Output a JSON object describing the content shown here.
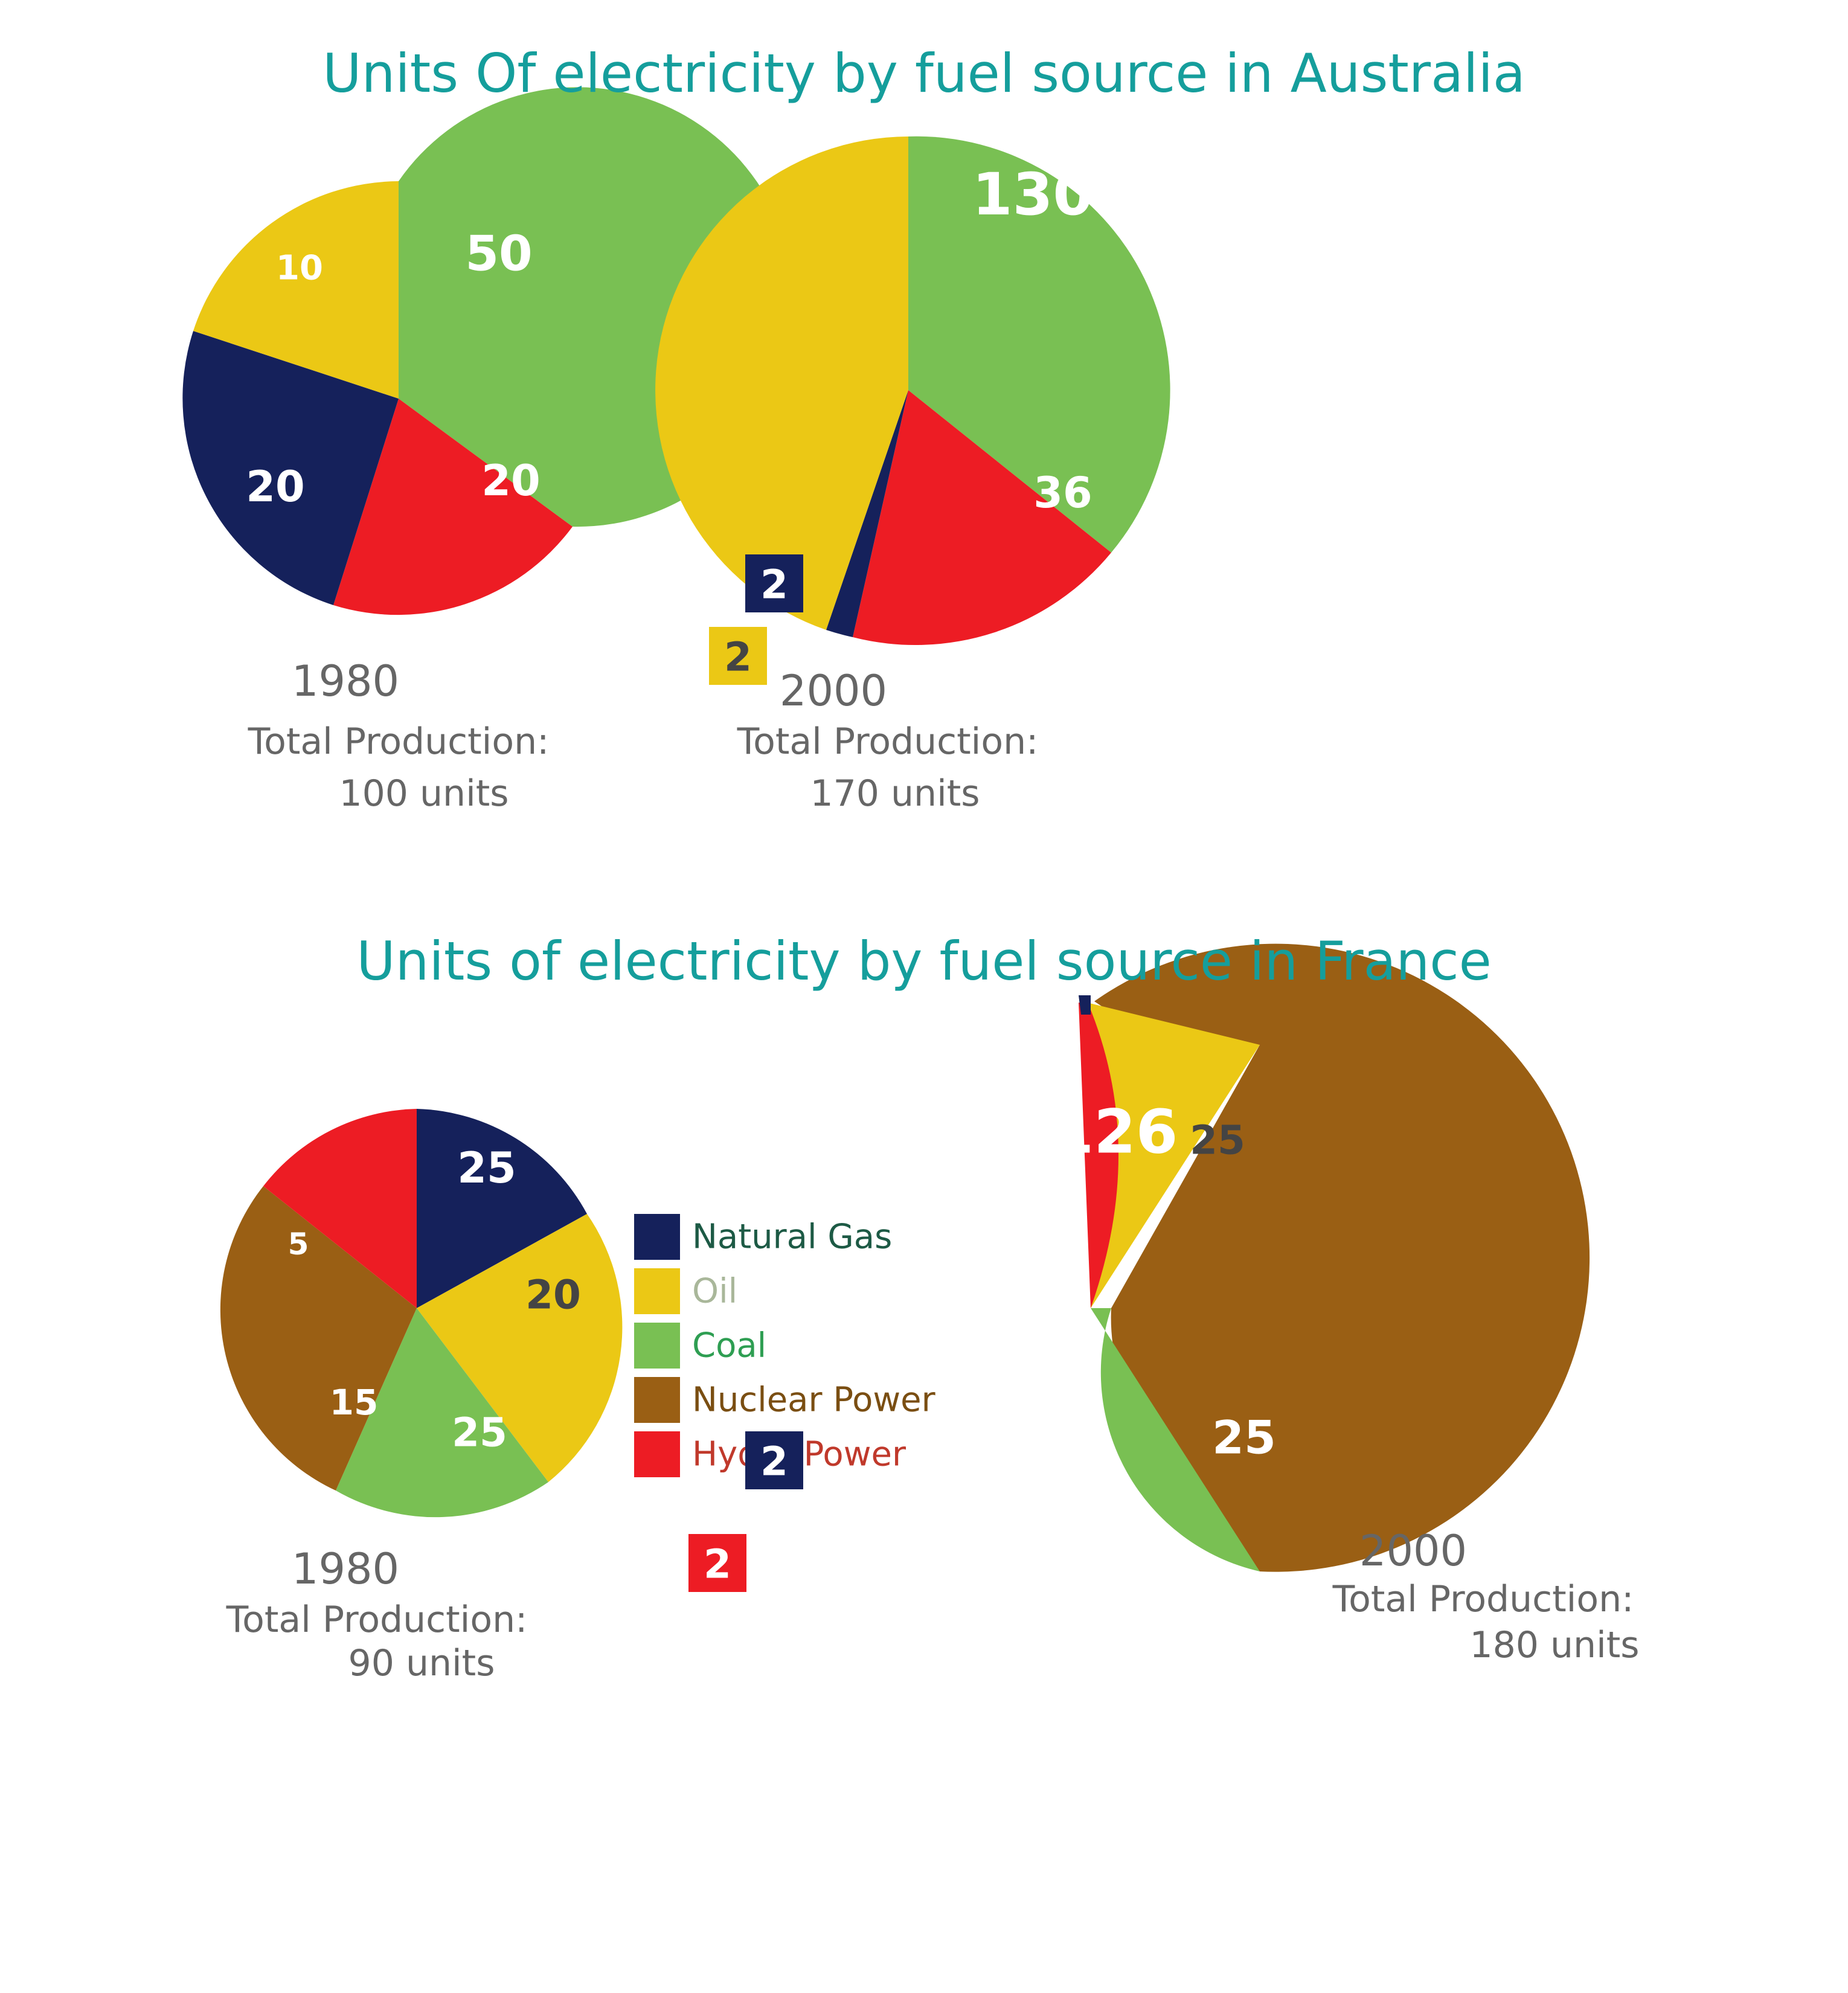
{
  "chart_data": [
    {
      "type": "pie",
      "title": "Units Of electricity by fuel source in Australia",
      "year": "1980",
      "total_label": "Total Production:",
      "total_value": "100 units",
      "slices": [
        {
          "name": "Coal",
          "value": 50,
          "label": "50",
          "color": "#79c053"
        },
        {
          "name": "Hydro Power",
          "value": 20,
          "label": "20",
          "color": "#ed1c24"
        },
        {
          "name": "Natural Gas",
          "value": 20,
          "label": "20",
          "color": "#15215b"
        },
        {
          "name": "Oil",
          "value": 10,
          "label": "10",
          "color": "#ebc815"
        }
      ]
    },
    {
      "type": "pie",
      "title": "Units Of electricity by fuel source in Australia",
      "year": "2000",
      "total_label": "Total Production:",
      "total_value": "170 units",
      "slices": [
        {
          "name": "Coal",
          "value": 130,
          "label": "130",
          "color": "#79c053"
        },
        {
          "name": "Hydro Power",
          "value": 36,
          "label": "36",
          "color": "#ed1c24"
        },
        {
          "name": "Natural Gas",
          "value": 2,
          "label": "2",
          "color": "#15215b"
        },
        {
          "name": "Oil",
          "value": 2,
          "label": "2",
          "color": "#ebc815"
        }
      ]
    },
    {
      "type": "pie",
      "title": "Units of electricity by fuel source in France",
      "year": "1980",
      "total_label": "Total Production:",
      "total_value": "90 units",
      "slices": [
        {
          "name": "Natural Gas",
          "value": 25,
          "label": "25",
          "color": "#15215b"
        },
        {
          "name": "Oil",
          "value": 20,
          "label": "20",
          "color": "#ebc815"
        },
        {
          "name": "Coal",
          "value": 25,
          "label": "25",
          "color": "#79c053"
        },
        {
          "name": "Nuclear Power",
          "value": 15,
          "label": "15",
          "color": "#9a5f14"
        },
        {
          "name": "Hydro Power",
          "value": 5,
          "label": "5",
          "color": "#ed1c24"
        }
      ]
    },
    {
      "type": "pie",
      "title": "Units of electricity by fuel source in France",
      "year": "2000",
      "total_label": "Total Production:",
      "total_value": "180 units",
      "slices": [
        {
          "name": "Nuclear Power",
          "value": 126,
          "label": "126",
          "color": "#9a5f14"
        },
        {
          "name": "Coal",
          "value": 25,
          "label": "25",
          "color": "#79c053"
        },
        {
          "name": "Oil",
          "value": 25,
          "label": "25",
          "color": "#ebc815"
        },
        {
          "name": "Hydro Power",
          "value": 2,
          "label": "2",
          "color": "#ed1c24"
        },
        {
          "name": "Natural Gas",
          "value": 2,
          "label": "2",
          "color": "#15215b"
        }
      ]
    }
  ],
  "titles": {
    "australia": "Units Of electricity by fuel source in Australia",
    "france": "Units of electricity by fuel source in France"
  },
  "legend": [
    {
      "name": "Natural Gas",
      "color": "#15215b",
      "text_color": "#1d5a45"
    },
    {
      "name": "Oil",
      "color": "#ebc815",
      "text_color": "#a9b79a"
    },
    {
      "name": "Coal",
      "color": "#79c053",
      "text_color": "#2e9e52"
    },
    {
      "name": "Nuclear Power",
      "color": "#9a5f14",
      "text_color": "#7a4e12"
    },
    {
      "name": "Hydro Power",
      "color": "#ed1c24",
      "text_color": "#c0392b"
    }
  ]
}
